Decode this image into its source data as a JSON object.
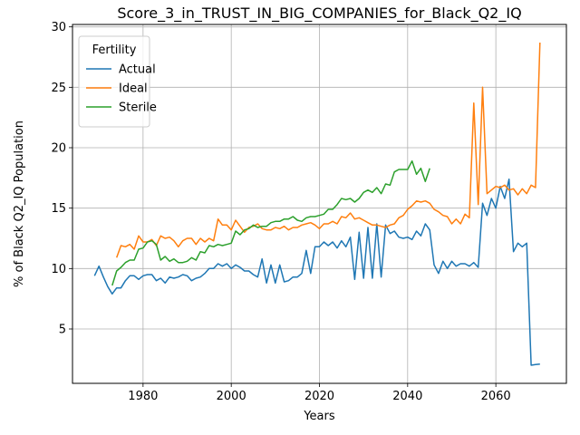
{
  "chart_data": {
    "type": "line",
    "title": "Score_3_in_TRUST_IN_BIG_COMPANIES_for_Black_Q2_IQ",
    "xlabel": "Years",
    "ylabel": "% of Black Q2_IQ Population",
    "xlim": [
      1964,
      2076
    ],
    "ylim": [
      0.5,
      30.2
    ],
    "xticks": [
      1980,
      2000,
      2020,
      2040,
      2060
    ],
    "yticks": [
      5,
      10,
      15,
      20,
      25,
      30
    ],
    "grid": true,
    "legend": {
      "title": "Fertility",
      "position": "upper-left"
    },
    "series": [
      {
        "name": "Actual",
        "color": "#1f77b4",
        "points": [
          [
            1969,
            9.4
          ],
          [
            1970,
            10.2
          ],
          [
            1971,
            9.3
          ],
          [
            1972,
            8.5
          ],
          [
            1973,
            7.9
          ],
          [
            1974,
            8.4
          ],
          [
            1975,
            8.4
          ],
          [
            1976,
            9.0
          ],
          [
            1977,
            9.4
          ],
          [
            1978,
            9.4
          ],
          [
            1979,
            9.1
          ],
          [
            1980,
            9.4
          ],
          [
            1981,
            9.5
          ],
          [
            1982,
            9.5
          ],
          [
            1983,
            9.0
          ],
          [
            1984,
            9.2
          ],
          [
            1985,
            8.8
          ],
          [
            1986,
            9.3
          ],
          [
            1987,
            9.2
          ],
          [
            1988,
            9.3
          ],
          [
            1989,
            9.5
          ],
          [
            1990,
            9.4
          ],
          [
            1991,
            9.0
          ],
          [
            1992,
            9.2
          ],
          [
            1993,
            9.3
          ],
          [
            1994,
            9.6
          ],
          [
            1995,
            10.0
          ],
          [
            1996,
            10.0
          ],
          [
            1997,
            10.4
          ],
          [
            1998,
            10.2
          ],
          [
            1999,
            10.4
          ],
          [
            2000,
            10.0
          ],
          [
            2001,
            10.3
          ],
          [
            2002,
            10.1
          ],
          [
            2003,
            9.8
          ],
          [
            2004,
            9.8
          ],
          [
            2005,
            9.5
          ],
          [
            2006,
            9.3
          ],
          [
            2007,
            10.8
          ],
          [
            2008,
            8.8
          ],
          [
            2009,
            10.3
          ],
          [
            2010,
            8.8
          ],
          [
            2011,
            10.3
          ],
          [
            2012,
            8.9
          ],
          [
            2013,
            9.0
          ],
          [
            2014,
            9.3
          ],
          [
            2015,
            9.3
          ],
          [
            2016,
            9.6
          ],
          [
            2017,
            11.5
          ],
          [
            2018,
            9.6
          ],
          [
            2019,
            11.8
          ],
          [
            2020,
            11.8
          ],
          [
            2021,
            12.2
          ],
          [
            2022,
            11.9
          ],
          [
            2023,
            12.2
          ],
          [
            2024,
            11.7
          ],
          [
            2025,
            12.3
          ],
          [
            2026,
            11.8
          ],
          [
            2027,
            12.6
          ],
          [
            2028,
            9.1
          ],
          [
            2029,
            13.0
          ],
          [
            2030,
            9.2
          ],
          [
            2031,
            13.4
          ],
          [
            2032,
            9.2
          ],
          [
            2033,
            13.7
          ],
          [
            2034,
            9.3
          ],
          [
            2035,
            13.6
          ],
          [
            2036,
            12.9
          ],
          [
            2037,
            13.1
          ],
          [
            2038,
            12.6
          ],
          [
            2039,
            12.5
          ],
          [
            2040,
            12.6
          ],
          [
            2041,
            12.4
          ],
          [
            2042,
            13.1
          ],
          [
            2043,
            12.7
          ],
          [
            2044,
            13.7
          ],
          [
            2045,
            13.2
          ],
          [
            2046,
            10.3
          ],
          [
            2047,
            9.6
          ],
          [
            2048,
            10.6
          ],
          [
            2049,
            10.0
          ],
          [
            2050,
            10.6
          ],
          [
            2051,
            10.2
          ],
          [
            2052,
            10.4
          ],
          [
            2053,
            10.4
          ],
          [
            2054,
            10.2
          ],
          [
            2055,
            10.5
          ],
          [
            2056,
            10.1
          ],
          [
            2057,
            15.4
          ],
          [
            2058,
            14.4
          ],
          [
            2059,
            15.8
          ],
          [
            2060,
            15.0
          ],
          [
            2061,
            16.8
          ],
          [
            2062,
            15.8
          ],
          [
            2063,
            17.4
          ],
          [
            2064,
            11.4
          ],
          [
            2065,
            12.1
          ],
          [
            2066,
            11.8
          ],
          [
            2067,
            12.1
          ],
          [
            2068,
            2.0
          ],
          [
            2069,
            2.05
          ],
          [
            2070,
            2.1
          ]
        ]
      },
      {
        "name": "Ideal",
        "color": "#ff7f0e",
        "points": [
          [
            1974,
            10.9
          ],
          [
            1975,
            11.9
          ],
          [
            1976,
            11.8
          ],
          [
            1977,
            12.0
          ],
          [
            1978,
            11.6
          ],
          [
            1979,
            12.7
          ],
          [
            1980,
            12.2
          ],
          [
            1981,
            12.2
          ],
          [
            1982,
            12.4
          ],
          [
            1983,
            11.9
          ],
          [
            1984,
            12.7
          ],
          [
            1985,
            12.5
          ],
          [
            1986,
            12.6
          ],
          [
            1987,
            12.3
          ],
          [
            1988,
            11.8
          ],
          [
            1989,
            12.3
          ],
          [
            1990,
            12.5
          ],
          [
            1991,
            12.5
          ],
          [
            1992,
            12.0
          ],
          [
            1993,
            12.5
          ],
          [
            1994,
            12.2
          ],
          [
            1995,
            12.5
          ],
          [
            1996,
            12.3
          ],
          [
            1997,
            14.1
          ],
          [
            1998,
            13.6
          ],
          [
            1999,
            13.6
          ],
          [
            2000,
            13.2
          ],
          [
            2001,
            14.0
          ],
          [
            2002,
            13.5
          ],
          [
            2003,
            13.0
          ],
          [
            2004,
            13.4
          ],
          [
            2005,
            13.5
          ],
          [
            2006,
            13.7
          ],
          [
            2007,
            13.3
          ],
          [
            2008,
            13.2
          ],
          [
            2009,
            13.2
          ],
          [
            2010,
            13.4
          ],
          [
            2011,
            13.3
          ],
          [
            2012,
            13.5
          ],
          [
            2013,
            13.2
          ],
          [
            2014,
            13.4
          ],
          [
            2015,
            13.4
          ],
          [
            2016,
            13.6
          ],
          [
            2017,
            13.7
          ],
          [
            2018,
            13.8
          ],
          [
            2019,
            13.6
          ],
          [
            2020,
            13.3
          ],
          [
            2021,
            13.7
          ],
          [
            2022,
            13.7
          ],
          [
            2023,
            13.9
          ],
          [
            2024,
            13.7
          ],
          [
            2025,
            14.3
          ],
          [
            2026,
            14.2
          ],
          [
            2027,
            14.6
          ],
          [
            2028,
            14.1
          ],
          [
            2029,
            14.2
          ],
          [
            2030,
            14.0
          ],
          [
            2031,
            13.8
          ],
          [
            2032,
            13.6
          ],
          [
            2033,
            13.6
          ],
          [
            2034,
            13.5
          ],
          [
            2035,
            13.4
          ],
          [
            2036,
            13.6
          ],
          [
            2037,
            13.7
          ],
          [
            2038,
            14.2
          ],
          [
            2039,
            14.4
          ],
          [
            2040,
            14.9
          ],
          [
            2041,
            15.2
          ],
          [
            2042,
            15.6
          ],
          [
            2043,
            15.5
          ],
          [
            2044,
            15.6
          ],
          [
            2045,
            15.4
          ],
          [
            2046,
            14.9
          ],
          [
            2047,
            14.7
          ],
          [
            2048,
            14.4
          ],
          [
            2049,
            14.3
          ],
          [
            2050,
            13.7
          ],
          [
            2051,
            14.1
          ],
          [
            2052,
            13.7
          ],
          [
            2053,
            14.5
          ],
          [
            2054,
            14.2
          ],
          [
            2055,
            23.7
          ],
          [
            2056,
            15.3
          ],
          [
            2057,
            25.0
          ],
          [
            2058,
            16.2
          ],
          [
            2059,
            16.5
          ],
          [
            2060,
            16.8
          ],
          [
            2061,
            16.7
          ],
          [
            2062,
            16.9
          ],
          [
            2063,
            16.5
          ],
          [
            2064,
            16.6
          ],
          [
            2065,
            16.1
          ],
          [
            2066,
            16.6
          ],
          [
            2067,
            16.2
          ],
          [
            2068,
            16.9
          ],
          [
            2069,
            16.7
          ],
          [
            2070,
            28.7
          ]
        ]
      },
      {
        "name": "Sterile",
        "color": "#2ca02c",
        "points": [
          [
            1973,
            8.6
          ],
          [
            1974,
            9.8
          ],
          [
            1975,
            10.1
          ],
          [
            1976,
            10.5
          ],
          [
            1977,
            10.7
          ],
          [
            1978,
            10.7
          ],
          [
            1979,
            11.6
          ],
          [
            1980,
            11.7
          ],
          [
            1981,
            12.2
          ],
          [
            1982,
            12.3
          ],
          [
            1983,
            12.0
          ],
          [
            1984,
            10.7
          ],
          [
            1985,
            11.0
          ],
          [
            1986,
            10.6
          ],
          [
            1987,
            10.8
          ],
          [
            1988,
            10.5
          ],
          [
            1989,
            10.5
          ],
          [
            1990,
            10.6
          ],
          [
            1991,
            10.9
          ],
          [
            1992,
            10.7
          ],
          [
            1993,
            11.4
          ],
          [
            1994,
            11.3
          ],
          [
            1995,
            11.9
          ],
          [
            1996,
            11.8
          ],
          [
            1997,
            12.0
          ],
          [
            1998,
            11.9
          ],
          [
            1999,
            12.0
          ],
          [
            2000,
            12.1
          ],
          [
            2001,
            13.1
          ],
          [
            2002,
            12.8
          ],
          [
            2003,
            13.2
          ],
          [
            2004,
            13.3
          ],
          [
            2005,
            13.6
          ],
          [
            2006,
            13.4
          ],
          [
            2007,
            13.5
          ],
          [
            2008,
            13.5
          ],
          [
            2009,
            13.8
          ],
          [
            2010,
            13.9
          ],
          [
            2011,
            13.9
          ],
          [
            2012,
            14.1
          ],
          [
            2013,
            14.1
          ],
          [
            2014,
            14.3
          ],
          [
            2015,
            14.0
          ],
          [
            2016,
            13.9
          ],
          [
            2017,
            14.2
          ],
          [
            2018,
            14.3
          ],
          [
            2019,
            14.3
          ],
          [
            2020,
            14.4
          ],
          [
            2021,
            14.5
          ],
          [
            2022,
            14.9
          ],
          [
            2023,
            14.9
          ],
          [
            2024,
            15.3
          ],
          [
            2025,
            15.8
          ],
          [
            2026,
            15.7
          ],
          [
            2027,
            15.8
          ],
          [
            2028,
            15.5
          ],
          [
            2029,
            15.8
          ],
          [
            2030,
            16.3
          ],
          [
            2031,
            16.5
          ],
          [
            2032,
            16.3
          ],
          [
            2033,
            16.7
          ],
          [
            2034,
            16.2
          ],
          [
            2035,
            17.0
          ],
          [
            2036,
            16.9
          ],
          [
            2037,
            18.0
          ],
          [
            2038,
            18.2
          ],
          [
            2039,
            18.2
          ],
          [
            2040,
            18.2
          ],
          [
            2041,
            18.9
          ],
          [
            2042,
            17.8
          ],
          [
            2043,
            18.3
          ],
          [
            2044,
            17.2
          ],
          [
            2045,
            18.3
          ]
        ]
      }
    ]
  }
}
